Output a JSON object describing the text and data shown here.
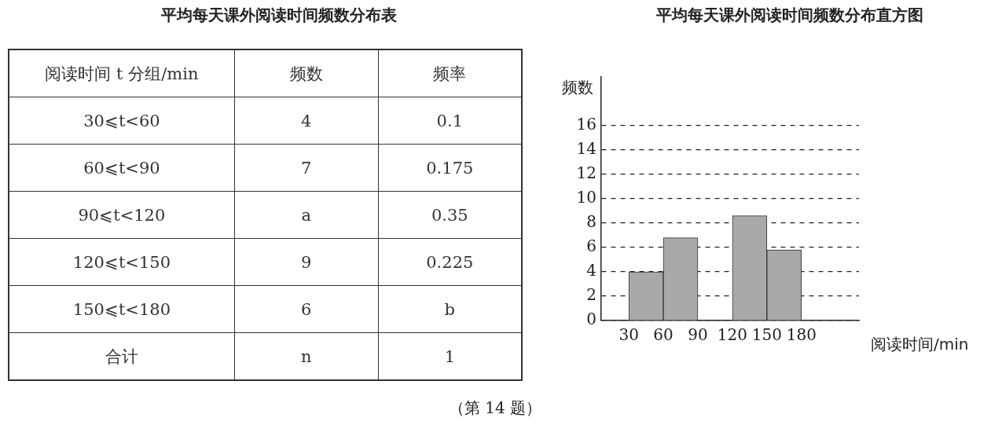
{
  "chart_data": [
    {
      "type": "other",
      "title": "平均每天课外阅读时间频数分布表",
      "categories": [
        "阅读时间 t 分组/min",
        "频数",
        "频率"
      ],
      "y_categories": [
        "30⩽t<60",
        "60⩽t<90",
        "90⩽t<120",
        "120⩽t<150",
        "150⩽t<180",
        "合计"
      ],
      "cell_labels": [
        [
          "4",
          "0.1"
        ],
        [
          "7",
          "0.175"
        ],
        [
          "a",
          "0.35"
        ],
        [
          "9",
          "0.225"
        ],
        [
          "6",
          "b"
        ],
        [
          "n",
          "1"
        ]
      ]
    },
    {
      "type": "histogram",
      "title": "平均每天课外阅读时间频数分布直方图",
      "xlabel": "阅读时间/min",
      "ylabel": "频数",
      "bins": [
        30,
        60,
        90,
        120,
        150,
        180
      ],
      "values": [
        4,
        6.8,
        null,
        8.6,
        5.8
      ],
      "color": "#a9a9a9",
      "xlim": [
        6,
        230
      ],
      "xticks": [
        30,
        60,
        90,
        120,
        150,
        180
      ],
      "ylim": [
        0,
        20
      ],
      "yticks": [
        0,
        2,
        4,
        6,
        8,
        10,
        12,
        14,
        16
      ],
      "grid": "y",
      "legend": false,
      "annotations": [
        "（第 14 题）"
      ]
    }
  ]
}
